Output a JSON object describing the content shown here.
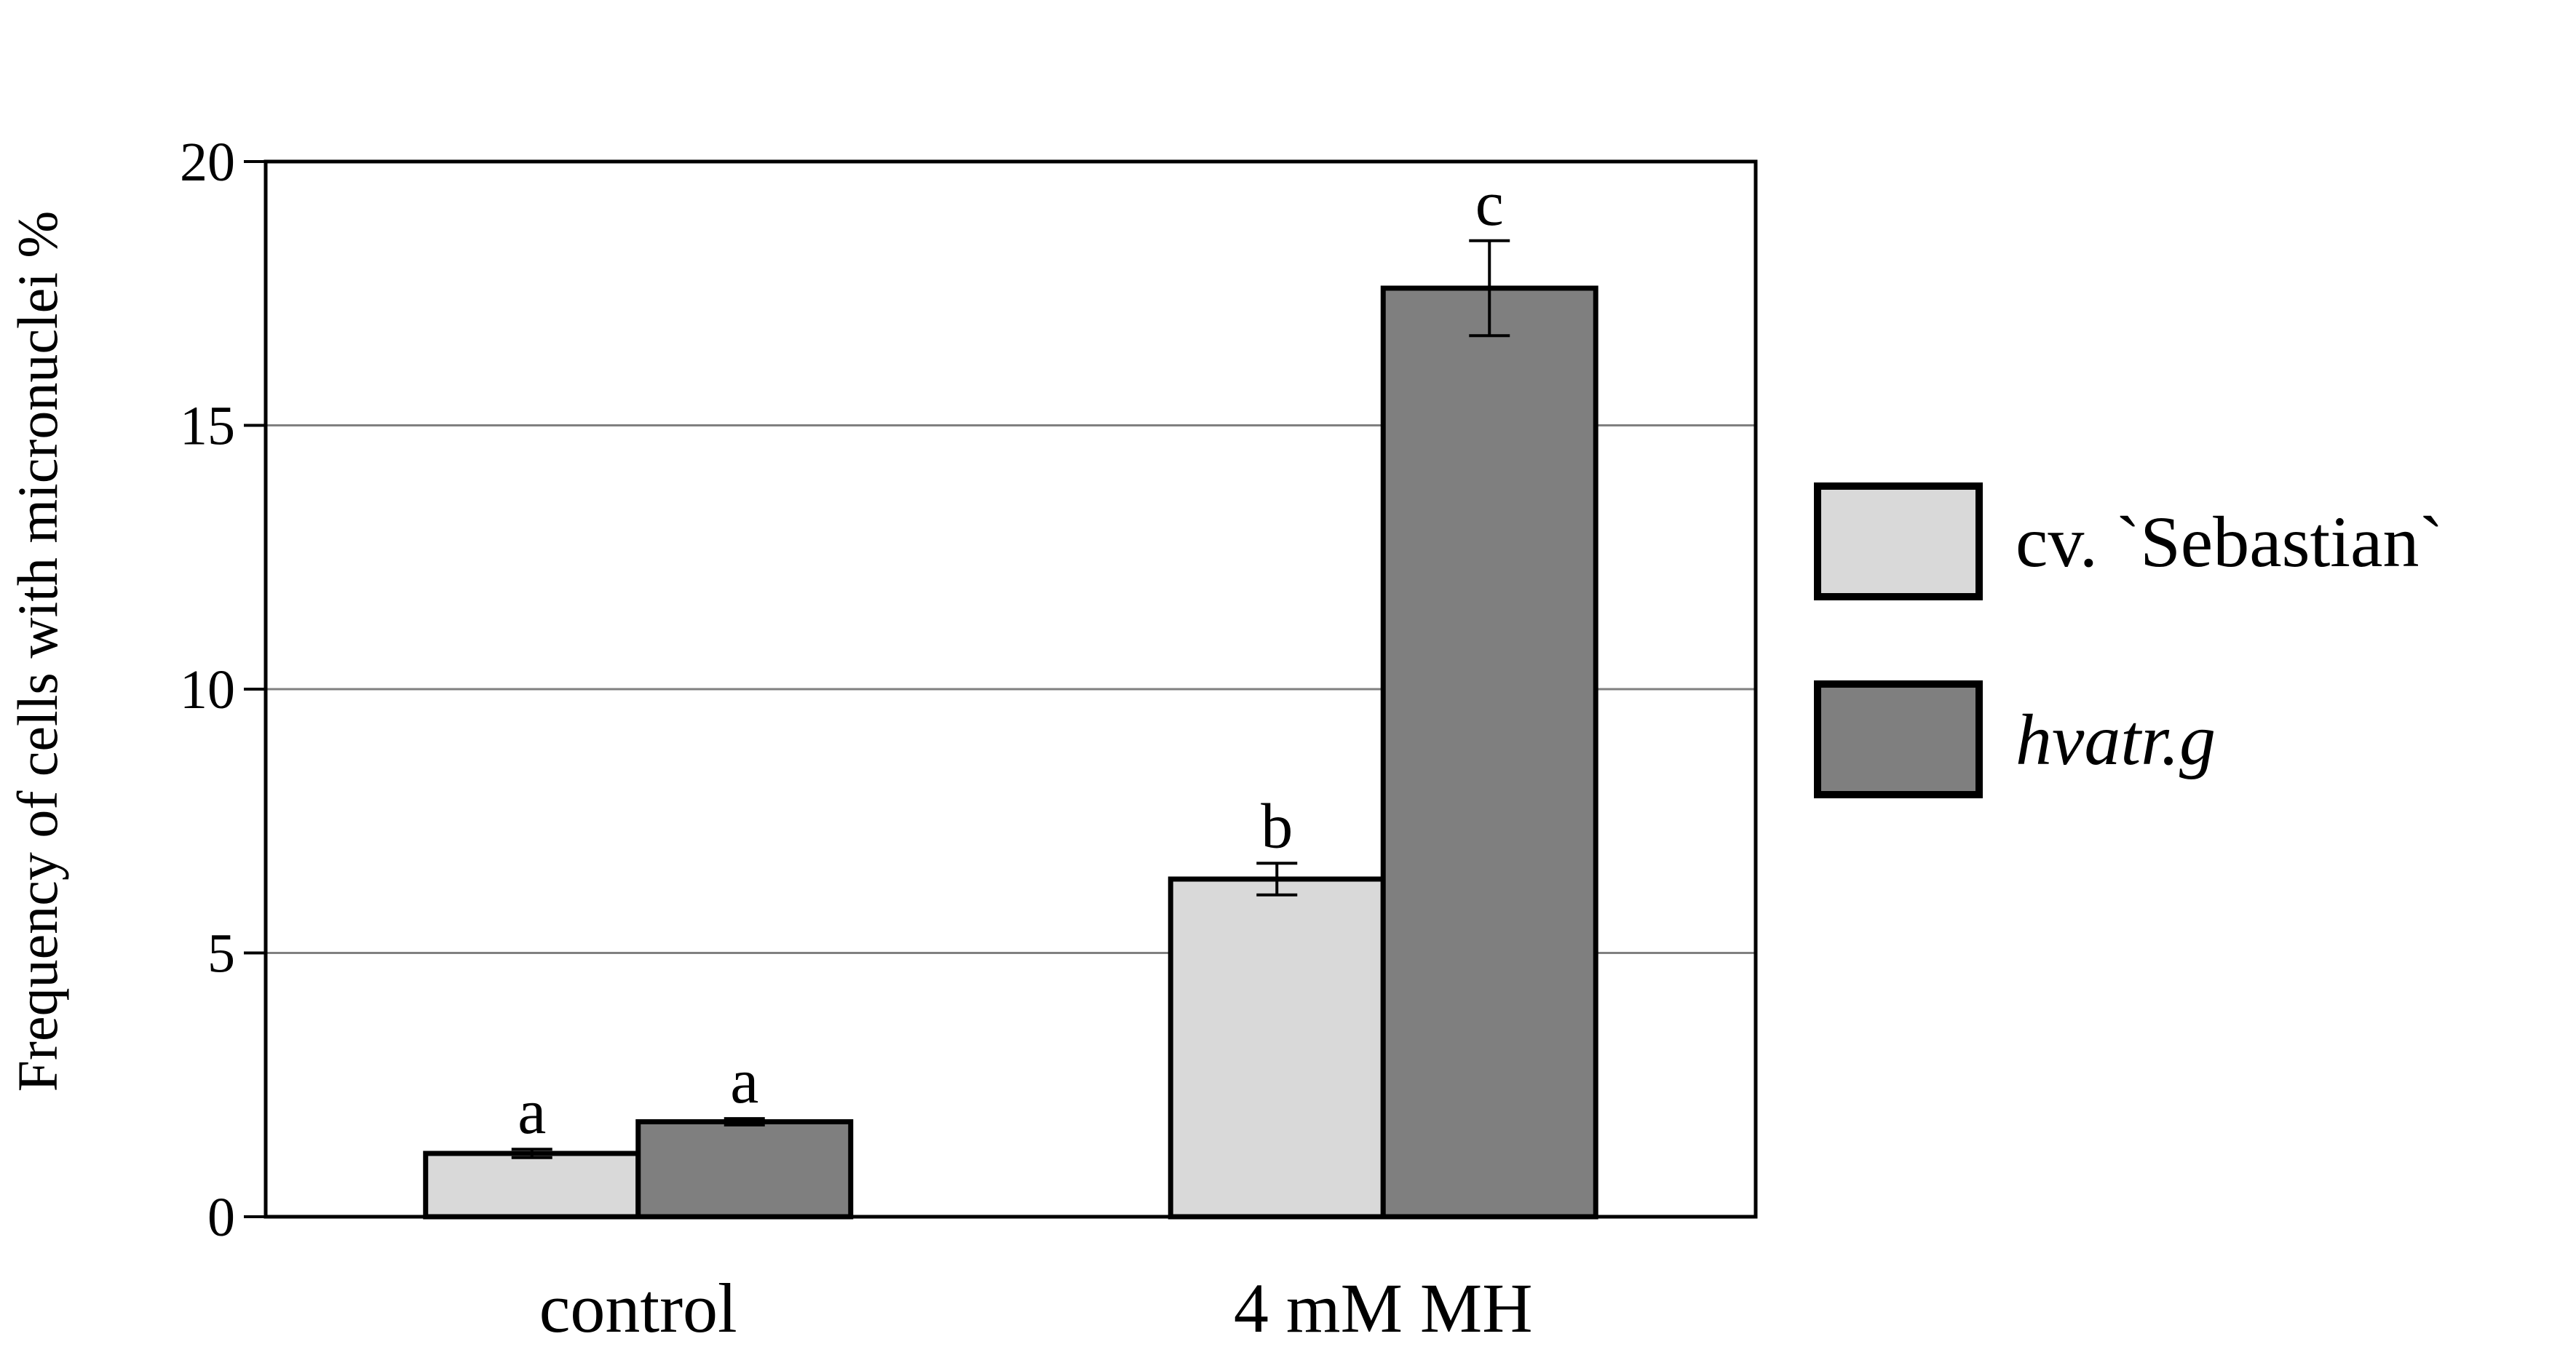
{
  "chart_data": {
    "type": "bar",
    "ylabel": "Frequency of cells with micronuclei %",
    "ylim": [
      0,
      20
    ],
    "yticks": [
      0,
      5,
      10,
      15,
      20
    ],
    "grid": true,
    "legend_position": "right",
    "categories": [
      "control",
      "4 mM MH"
    ],
    "series": [
      {
        "name": "cv. `Sebastian`",
        "italic": false,
        "color": "#d9d9d9",
        "values": [
          1.2,
          6.4
        ],
        "errors": [
          0.08,
          0.3
        ],
        "letters": [
          "a",
          "b"
        ]
      },
      {
        "name": "hvatr.g",
        "italic": true,
        "color": "#7f7f7f",
        "values": [
          1.8,
          17.6
        ],
        "errors": [
          0.06,
          0.9
        ],
        "letters": [
          "a",
          "c"
        ]
      }
    ]
  }
}
